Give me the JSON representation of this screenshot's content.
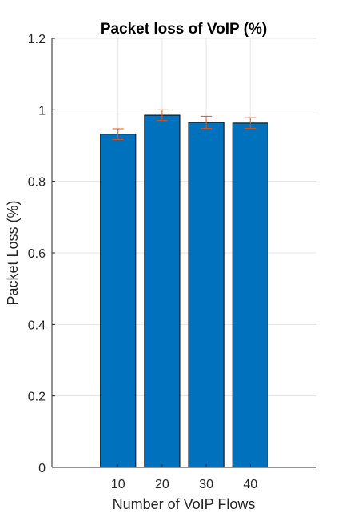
{
  "chart_data": {
    "type": "bar",
    "title": "Packet loss of VoIP (%)",
    "xlabel": "Number of VoIP Flows",
    "ylabel": "Packet Loss (%)",
    "categories": [
      "10",
      "20",
      "30",
      "40"
    ],
    "values": [
      0.932,
      0.985,
      0.965,
      0.963
    ],
    "error": [
      0.015,
      0.015,
      0.017,
      0.015
    ],
    "ylim": [
      0,
      1.2
    ],
    "yticks": [
      0,
      0.2,
      0.4,
      0.6,
      0.8,
      1,
      1.2
    ],
    "ytick_labels": [
      "0",
      "0.2",
      "0.4",
      "0.6",
      "0.8",
      "1",
      "1.2"
    ],
    "grid": true,
    "colors": {
      "bar": "#0072BD",
      "bar_edge": "#000000",
      "error_bar": "#D95319",
      "grid": "#e6e6e6",
      "axis": "#262626"
    }
  }
}
